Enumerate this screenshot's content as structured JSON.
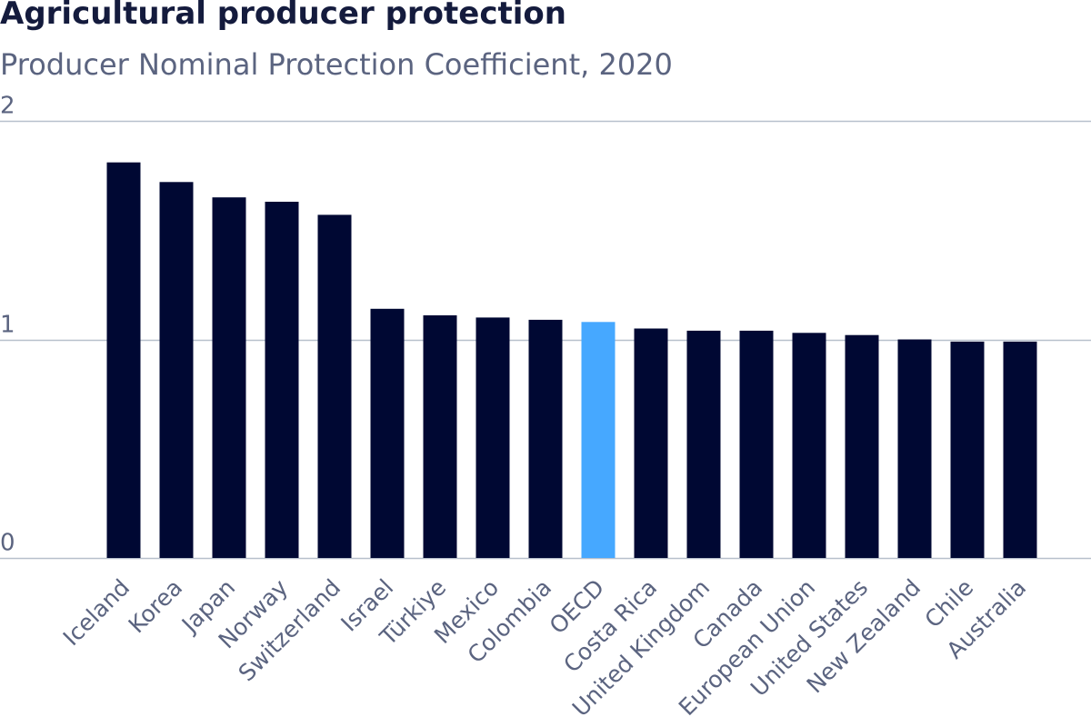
{
  "chart_data": {
    "type": "bar",
    "title": "Agricultural producer protection",
    "subtitle": "Producer Nominal Protection Coefficient, 2020",
    "xlabel": "",
    "ylabel": "",
    "ylim": [
      0,
      2
    ],
    "yticks": [
      0,
      1,
      2
    ],
    "grid": true,
    "categories": [
      "Iceland",
      "Korea",
      "Japan",
      "Norway",
      "Switzerland",
      "Israel",
      "Türkiye",
      "Mexico",
      "Colombia",
      "OECD",
      "Costa Rica",
      "United Kingdom",
      "Canada",
      "European Union",
      "United States",
      "New Zealand",
      "Chile",
      "Australia"
    ],
    "values": [
      1.81,
      1.72,
      1.65,
      1.63,
      1.57,
      1.14,
      1.11,
      1.1,
      1.09,
      1.08,
      1.05,
      1.04,
      1.04,
      1.03,
      1.02,
      1.0,
      0.99,
      0.99
    ],
    "highlight": "OECD",
    "colors": {
      "bar": "#000833",
      "highlight": "#46a8ff",
      "grid": "#b7c0cc",
      "text": "#5b6480",
      "title": "#141b3d"
    }
  }
}
